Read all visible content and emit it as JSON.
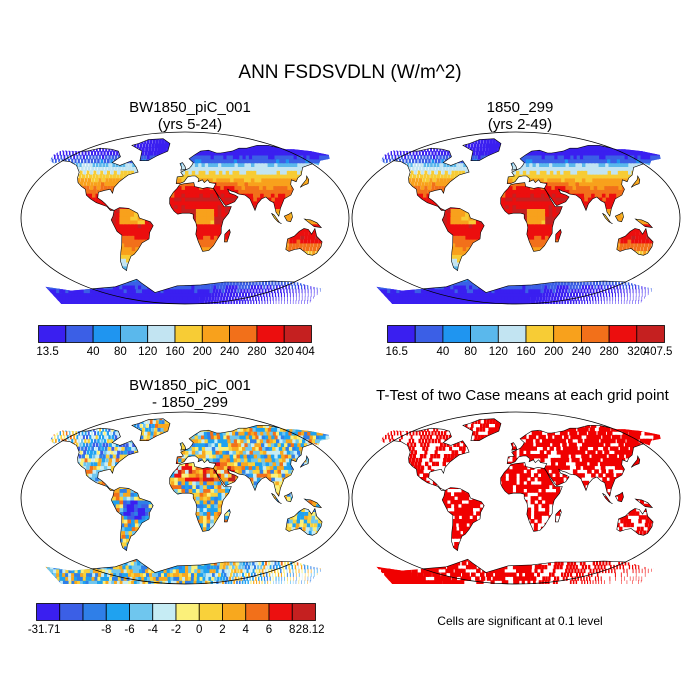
{
  "title": "ANN FSDSVDLN (W/m^2)",
  "panels": [
    {
      "id": "case1",
      "title_line1": "BW1850_piC_001",
      "title_line2": "(yrs 5-24)"
    },
    {
      "id": "case2",
      "title_line1": "1850_299",
      "title_line2": "(yrs 2-49)"
    },
    {
      "id": "diff",
      "title_line1": "BW1850_piC_001",
      "title_line2": "- 1850_299"
    },
    {
      "id": "ttest",
      "title_line1": "T-Test of two Case means at each grid point",
      "title_line2": ""
    }
  ],
  "colorbars": [
    {
      "id": "case1",
      "labels": [
        "13.5",
        "40",
        "80",
        "120",
        "160",
        "200",
        "240",
        "280",
        "320",
        "404"
      ],
      "colors": [
        "#3a1ff0",
        "#3b5fe6",
        "#1f95f0",
        "#5ab8ec",
        "#c2e4f2",
        "#f7cc35",
        "#f8a11c",
        "#f2701a",
        "#ec0e0e",
        "#c52020"
      ]
    },
    {
      "id": "case2",
      "labels": [
        "16.5",
        "40",
        "80",
        "120",
        "160",
        "200",
        "240",
        "280",
        "320",
        "407.5"
      ],
      "colors": [
        "#3a1ff0",
        "#3b5fe6",
        "#1f95f0",
        "#5ab8ec",
        "#c2e4f2",
        "#f7cc35",
        "#f8a11c",
        "#f2701a",
        "#ec0e0e",
        "#c52020"
      ]
    },
    {
      "id": "diff",
      "labels": [
        "-31.71",
        "-8",
        "-6",
        "-4",
        "-2",
        "0",
        "2",
        "4",
        "6",
        "8",
        "28.12"
      ],
      "colors": [
        "#3a1ff0",
        "#3b5fe6",
        "#2f7fe8",
        "#1fa2f0",
        "#6fc6ee",
        "#c6ecf4",
        "#fbf07a",
        "#f9d13a",
        "#f8a81e",
        "#f2701a",
        "#ec1010",
        "#c52020"
      ]
    }
  ],
  "significance_note": "Cells are significant at 0.1 level",
  "colors": {
    "ocean": "#ffffff",
    "coastline": "#000000",
    "significant": "#f00000"
  }
}
